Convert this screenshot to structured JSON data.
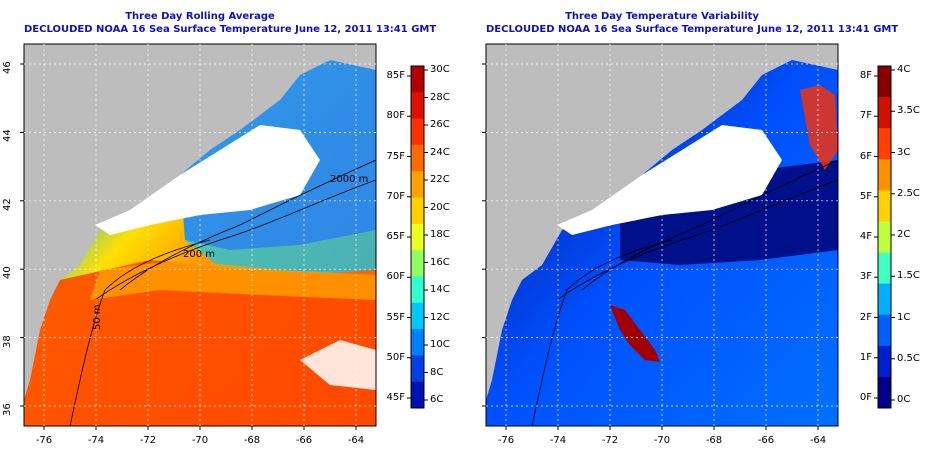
{
  "panels": [
    {
      "title_line1": "Three Day Rolling Average",
      "title_line2": "DECLOUDED NOAA 16 Sea Surface Temperature June 12, 2011 13:41 GMT",
      "x_ticks": [
        "-76",
        "-74",
        "-72",
        "-70",
        "-68",
        "-66",
        "-64"
      ],
      "y_ticks": [
        "36",
        "38",
        "40",
        "42",
        "44",
        "46"
      ],
      "contours": [
        "2000 m",
        "200 m",
        "50 m"
      ],
      "colorbar": {
        "left_labels": [
          "85F",
          "80F",
          "75F",
          "70F",
          "65F",
          "60F",
          "55F",
          "50F",
          "45F"
        ],
        "right_labels": [
          "30C",
          "28C",
          "26C",
          "24C",
          "22C",
          "20C",
          "18C",
          "16C",
          "14C",
          "12C",
          "10C",
          "8C",
          "6C"
        ],
        "colors": [
          "#b00000",
          "#e01000",
          "#ff3000",
          "#ff6a00",
          "#ffa000",
          "#ffd000",
          "#e8ff20",
          "#90ff60",
          "#30ffd0",
          "#00c8ff",
          "#0080ff",
          "#0040e0",
          "#0010b0"
        ]
      }
    },
    {
      "title_line1": "Three Day Temperature Variability",
      "title_line2": "DECLOUDED NOAA 16 Sea Surface Temperature June 12, 2011 13:41 GMT",
      "x_ticks": [
        "-76",
        "-74",
        "-72",
        "-70",
        "-68",
        "-66",
        "-64"
      ],
      "y_ticks": [],
      "colorbar": {
        "left_labels": [
          "8F",
          "7F",
          "6F",
          "5F",
          "4F",
          "3F",
          "2F",
          "1F",
          "0F"
        ],
        "right_labels": [
          "4C",
          "3.5C",
          "3C",
          "2.5C",
          "2C",
          "1.5C",
          "1C",
          "0.5C",
          "0C"
        ],
        "colors": [
          "#8a0000",
          "#d01000",
          "#ff4000",
          "#ff9000",
          "#ffd000",
          "#c0ff40",
          "#40ffc0",
          "#00b0ff",
          "#0060ff",
          "#0020d0",
          "#00008a"
        ]
      }
    }
  ],
  "colors": {
    "land": "#bdbdbd",
    "cloud_mask": "#ffffff",
    "title": "#1111bb"
  }
}
